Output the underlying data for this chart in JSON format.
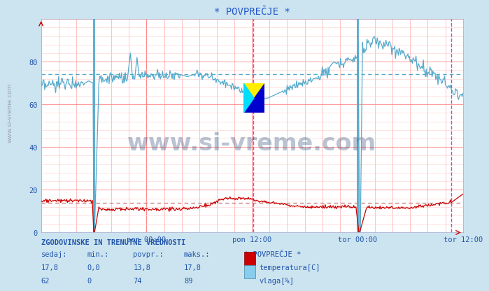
{
  "title": "* POVPREČJE *",
  "bg_color": "#cce4f0",
  "plot_bg_color": "#ffffff",
  "ylim": [
    0,
    100
  ],
  "xlim": [
    0,
    575
  ],
  "x_ticks_pos": [
    144,
    288,
    432,
    576
  ],
  "x_tick_labels": [
    "pon 00:00",
    "pon 12:00",
    "tor 00:00",
    "tor 12:00"
  ],
  "y_ticks": [
    0,
    20,
    40,
    60,
    80
  ],
  "temp_avg": 13.8,
  "humidity_avg": 74,
  "temp_color": "#cc0000",
  "humidity_color": "#55aacc",
  "temp_dashed_color": "#cc8888",
  "humidity_dashed_color": "#55aacc",
  "watermark": "www.si-vreme.com",
  "watermark_color": "#1a3a6b",
  "legend_title": "* POVPREČJE *",
  "table_header": "ZGODOVINSKE IN TRENUTNE VREDNOSTI",
  "col_headers": [
    "sedaj:",
    "min.:",
    "povpr.:",
    "maks.:"
  ],
  "temp_row": [
    "17,8",
    "0,0",
    "13,8",
    "17,8"
  ],
  "humidity_row": [
    "62",
    "0",
    "74",
    "89"
  ],
  "temp_label": "temperatura[C]",
  "humidity_label": "vlaga[%]",
  "cyan_vline_x": 432,
  "magenta_vline1_x": 290,
  "magenta_vline2_x": 560
}
